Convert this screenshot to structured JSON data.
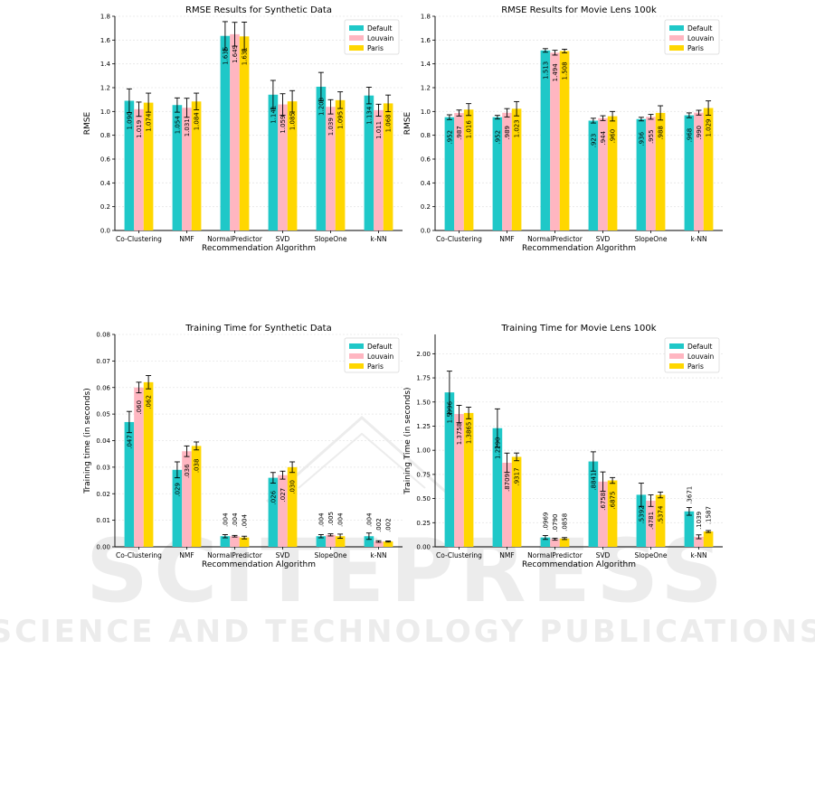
{
  "legend": [
    "Default",
    "Louvain",
    "Paris"
  ],
  "colors": {
    "Default": "#1fc8c8",
    "Louvain": "#ffb6c1",
    "Paris": "#ffd700",
    "grid": "#e6e6e6",
    "axis": "#000000"
  },
  "watermark": {
    "line1": "SCITEPRESS",
    "line2": "SCIENCE AND TECHNOLOGY PUBLICATIONS"
  },
  "chart_data": [
    {
      "type": "bar",
      "title": "RMSE Results for Synthetic Data",
      "xlabel": "Recommendation Algorithm",
      "ylabel": "RMSE",
      "ylim": [
        0,
        1.8
      ],
      "yticks": [
        "0.0",
        "0.2",
        "0.4",
        "0.6",
        "0.8",
        "1.0",
        "1.2",
        "1.4",
        "1.6",
        "1.8"
      ],
      "grid": true,
      "legend_position": "top-right",
      "categories": [
        "Co-Clustering",
        "NMF",
        "NormalPredictor",
        "SVD",
        "SlopeOne",
        "k-NN"
      ],
      "series": [
        {
          "name": "Default",
          "values": [
            1.09,
            1.054,
            1.635,
            1.141,
            1.208,
            1.134
          ],
          "errors": [
            0.1,
            0.06,
            0.12,
            0.12,
            0.12,
            0.07
          ],
          "labels": [
            "1.090",
            "1.054",
            "1.635",
            "1.141",
            "1.208",
            "1.134"
          ]
        },
        {
          "name": "Louvain",
          "values": [
            1.019,
            1.031,
            1.649,
            1.059,
            1.039,
            1.011
          ],
          "errors": [
            0.06,
            0.08,
            0.1,
            0.09,
            0.06,
            0.05
          ],
          "labels": [
            "1.019",
            "1.031",
            "1.649",
            "1.059",
            "1.039",
            "1.011"
          ]
        },
        {
          "name": "Paris",
          "values": [
            1.074,
            1.084,
            1.631,
            1.085,
            1.095,
            1.068
          ],
          "errors": [
            0.08,
            0.07,
            0.12,
            0.09,
            0.07,
            0.07
          ],
          "labels": [
            "1.074",
            "1.084",
            "1.631",
            "1.085",
            "1.095",
            "1.068"
          ]
        }
      ]
    },
    {
      "type": "bar",
      "title": "RMSE Results for Movie Lens 100k",
      "xlabel": "Recommendation Algorithm",
      "ylabel": "RMSE",
      "ylim": [
        0,
        1.8
      ],
      "yticks": [
        "0.0",
        "0.2",
        "0.4",
        "0.6",
        "0.8",
        "1.0",
        "1.2",
        "1.4",
        "1.6",
        "1.8"
      ],
      "grid": true,
      "legend_position": "top-right",
      "categories": [
        "Co-Clustering",
        "NMF",
        "NormalPredictor",
        "SVD",
        "SlopeOne",
        "k-NN"
      ],
      "series": [
        {
          "name": "Default",
          "values": [
            0.952,
            0.952,
            1.513,
            0.923,
            0.936,
            0.968
          ],
          "errors": [
            0.02,
            0.015,
            0.015,
            0.02,
            0.015,
            0.02
          ],
          "labels": [
            ".952",
            ".952",
            "1.513",
            ".923",
            ".936",
            ".968"
          ]
        },
        {
          "name": "Louvain",
          "values": [
            0.987,
            0.989,
            1.494,
            0.944,
            0.955,
            0.99
          ],
          "errors": [
            0.025,
            0.035,
            0.02,
            0.02,
            0.02,
            0.02
          ],
          "labels": [
            ".987",
            ".989",
            "1.494",
            ".944",
            ".955",
            ".990"
          ]
        },
        {
          "name": "Paris",
          "values": [
            1.016,
            1.023,
            1.508,
            0.96,
            0.988,
            1.029
          ],
          "errors": [
            0.05,
            0.06,
            0.015,
            0.04,
            0.06,
            0.06
          ],
          "labels": [
            "1.016",
            "1.023",
            "1.508",
            ".960",
            ".988",
            "1.029"
          ]
        }
      ]
    },
    {
      "type": "bar",
      "title": "Training Time for Synthetic Data",
      "xlabel": "Recommendation Algorithm",
      "ylabel": "Training time (in seconds)",
      "ylim": [
        0,
        0.08
      ],
      "yticks": [
        "0.00",
        "0.01",
        "0.02",
        "0.03",
        "0.04",
        "0.05",
        "0.06",
        "0.07",
        "0.08"
      ],
      "grid": true,
      "legend_position": "top-right",
      "categories": [
        "Co-Clustering",
        "NMF",
        "NormalPredictor",
        "SVD",
        "SlopeOne",
        "k-NN"
      ],
      "series": [
        {
          "name": "Default",
          "values": [
            0.047,
            0.029,
            0.004,
            0.026,
            0.004,
            0.004
          ],
          "errors": [
            0.004,
            0.003,
            0.0006,
            0.002,
            0.0006,
            0.0012
          ],
          "labels": [
            ".047",
            ".029",
            ".004",
            ".026",
            ".004",
            ".004"
          ]
        },
        {
          "name": "Louvain",
          "values": [
            0.06,
            0.036,
            0.004,
            0.027,
            0.0045,
            0.002
          ],
          "errors": [
            0.002,
            0.002,
            0.0003,
            0.0015,
            0.0004,
            0.0003
          ],
          "labels": [
            ".060",
            ".036",
            ".004",
            ".027",
            ".005",
            ".002"
          ]
        },
        {
          "name": "Paris",
          "values": [
            0.062,
            0.038,
            0.0035,
            0.03,
            0.004,
            0.002
          ],
          "errors": [
            0.0025,
            0.0015,
            0.0005,
            0.002,
            0.0008,
            0.0002
          ],
          "labels": [
            ".062",
            ".038",
            ".004",
            ".030",
            ".004",
            ".002"
          ]
        }
      ]
    },
    {
      "type": "bar",
      "title": "Training Time for Movie Lens 100k",
      "xlabel": "Recommendation Algorithm",
      "ylabel": "Training Time (in seconds)",
      "ylim": [
        0,
        2.2
      ],
      "yticks": [
        "0.00",
        "0.25",
        "0.50",
        "0.75",
        "1.00",
        "1.25",
        "1.50",
        "1.75",
        "2.00"
      ],
      "grid": true,
      "legend_position": "top-right",
      "categories": [
        "Co-Clustering",
        "NMF",
        "NormalPredictor",
        "SVD",
        "SlopeOne",
        "k-NN"
      ],
      "series": [
        {
          "name": "Default",
          "values": [
            1.5996,
            1.229,
            0.0969,
            0.8841,
            0.5392,
            0.3671
          ],
          "errors": [
            0.22,
            0.2,
            0.02,
            0.1,
            0.12,
            0.04
          ],
          "labels": [
            "1.5996",
            "1.2290",
            ".0969",
            ".8841",
            ".5392",
            ".3671"
          ]
        },
        {
          "name": "Louvain",
          "values": [
            1.3758,
            0.8709,
            0.079,
            0.6758,
            0.4781,
            0.1039
          ],
          "errors": [
            0.09,
            0.1,
            0.01,
            0.1,
            0.06,
            0.02
          ],
          "labels": [
            "1.3758",
            ".8709",
            ".0790",
            ".6758",
            ".4781",
            ".1039"
          ]
        },
        {
          "name": "Paris",
          "values": [
            1.3865,
            0.9317,
            0.0858,
            0.6875,
            0.5374,
            0.1587
          ],
          "errors": [
            0.06,
            0.04,
            0.01,
            0.03,
            0.03,
            0.01
          ],
          "labels": [
            "1.3865",
            ".9317",
            ".0858",
            ".6875",
            ".5374",
            ".1587"
          ]
        }
      ]
    }
  ]
}
